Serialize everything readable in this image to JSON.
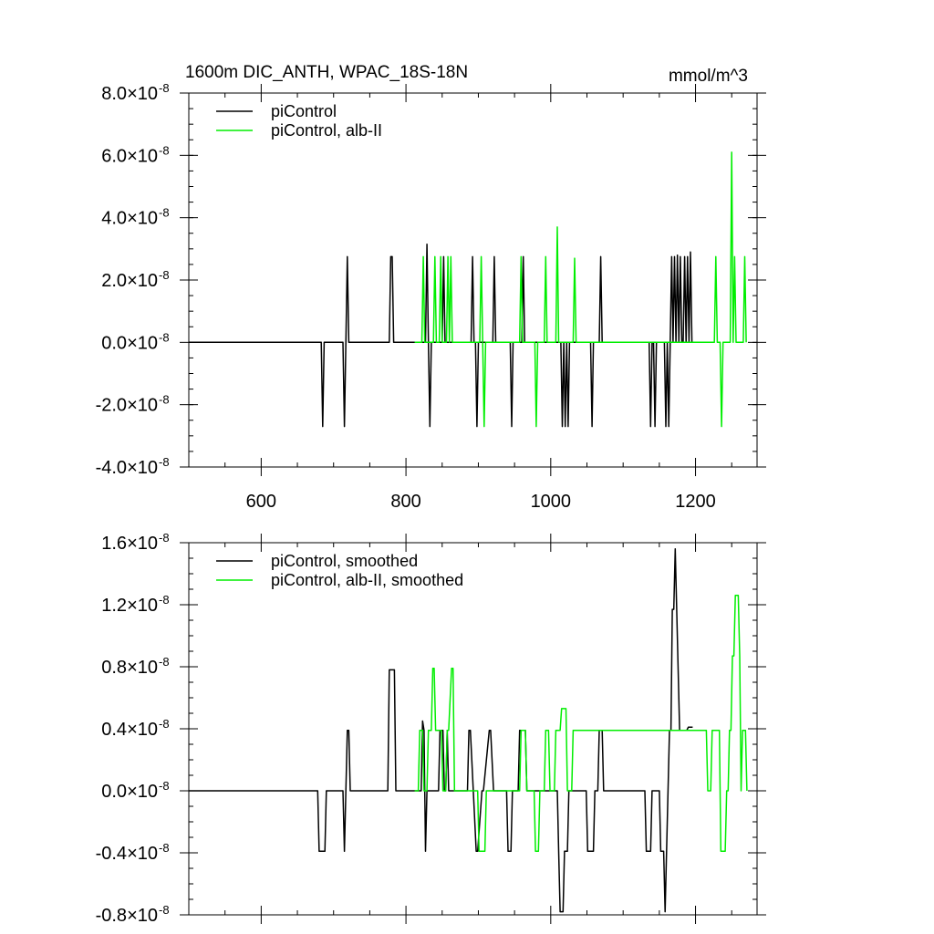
{
  "chart_data": [
    {
      "type": "line",
      "title": "1600m DIC_ANTH, WPAC_18S-18N",
      "units": "mmol/m^3",
      "xlim": [
        500,
        1285
      ],
      "ylim": [
        -4e-08,
        8e-08
      ],
      "x_ticks": [
        600,
        800,
        1000,
        1200
      ],
      "x_tick_labels": [
        "600",
        "800",
        "1000",
        "1200"
      ],
      "y_ticks": [
        -4e-08,
        -2e-08,
        0.0,
        2e-08,
        4e-08,
        6e-08,
        8e-08
      ],
      "y_tick_mantissa": [
        "-4.0",
        "-2.0",
        "0.0",
        "2.0",
        "4.0",
        "6.0",
        "8.0"
      ],
      "y_tick_times": "×",
      "y_tick_base": "10",
      "y_tick_exp": "-8",
      "legend_position": "top-left",
      "series": [
        {
          "name": "piControl",
          "color": "#000000",
          "x": [
            500,
            683,
            685,
            687,
            713,
            715,
            717,
            719,
            721,
            777,
            779,
            781,
            783,
            812,
            827,
            829,
            831,
            833,
            835,
            850,
            852,
            854,
            890,
            892,
            894,
            896,
            898,
            900,
            902,
            920,
            922,
            924,
            944,
            946,
            948,
            960,
            962,
            964,
            1014,
            1016,
            1018,
            1020,
            1022,
            1024,
            1026,
            1055,
            1057,
            1059,
            1067,
            1069,
            1071,
            1136,
            1138,
            1140,
            1142,
            1144,
            1146,
            1157,
            1159,
            1161,
            1163,
            1165,
            1167,
            1169,
            1171,
            1173,
            1175,
            1177,
            1179,
            1181,
            1183,
            1185,
            1187,
            1189,
            1191,
            1193,
            1195,
            1197
          ],
          "values": [
            0,
            0,
            -2.7e-08,
            0,
            0,
            -2.7e-08,
            0,
            2.75e-08,
            0,
            0,
            2.75e-08,
            2.75e-08,
            0,
            0,
            0,
            3.15e-08,
            0,
            -2.7e-08,
            0,
            0,
            2.75e-08,
            0,
            0,
            2.75e-08,
            0,
            0,
            -2.7e-08,
            0,
            0,
            0,
            2.75e-08,
            0,
            0,
            -2.7e-08,
            0,
            0,
            2.75e-08,
            0,
            0,
            -2.7e-08,
            0,
            -2.7e-08,
            0,
            -2.7e-08,
            0,
            0,
            -2.7e-08,
            0,
            0,
            2.75e-08,
            0,
            0,
            -2.7e-08,
            0,
            0,
            -2.7e-08,
            0,
            0,
            -2.7e-08,
            0,
            -2.7e-08,
            0,
            2.75e-08,
            0,
            2.75e-08,
            0,
            2.8e-08,
            0,
            2.75e-08,
            0,
            0,
            2.75e-08,
            0,
            2.75e-08,
            0,
            2.9e-08,
            0,
            0
          ]
        },
        {
          "name": "piControl, alb-II",
          "color": "#00ee00",
          "x": [
            812,
            822,
            824,
            826,
            838,
            840,
            842,
            846,
            848,
            850,
            856,
            858,
            860,
            862,
            864,
            866,
            902,
            904,
            906,
            908,
            910,
            957,
            959,
            961,
            978,
            980,
            982,
            991,
            993,
            995,
            1007,
            1009,
            1011,
            1031,
            1033,
            1035,
            1226,
            1228,
            1230,
            1234,
            1236,
            1238,
            1248,
            1250,
            1252,
            1254,
            1256,
            1258,
            1266,
            1268,
            1270
          ],
          "values": [
            0,
            0,
            2.75e-08,
            0,
            0,
            2.75e-08,
            0,
            0,
            2.75e-08,
            0,
            0,
            2.75e-08,
            0,
            2.75e-08,
            0,
            0,
            0,
            2.75e-08,
            0,
            -2.7e-08,
            0,
            0,
            2.75e-08,
            0,
            0,
            -2.7e-08,
            0,
            0,
            2.75e-08,
            0,
            0,
            3.7e-08,
            0,
            0,
            2.7e-08,
            0,
            0,
            2.75e-08,
            0,
            0,
            -2.7e-08,
            0,
            0,
            6.1e-08,
            0,
            2.75e-08,
            0,
            0,
            0,
            2.75e-08,
            0
          ]
        }
      ]
    },
    {
      "type": "line",
      "title": "",
      "units": "",
      "xlim": [
        500,
        1285
      ],
      "ylim": [
        -8e-09,
        1.6e-08
      ],
      "x_ticks": [
        600,
        800,
        1000,
        1200
      ],
      "x_tick_labels": [],
      "y_ticks": [
        -8e-09,
        -4e-09,
        0.0,
        4e-09,
        8e-09,
        1.2e-08,
        1.6e-08
      ],
      "y_tick_mantissa": [
        "-0.8",
        "-0.4",
        "0.0",
        "0.4",
        "0.8",
        "1.2",
        "1.6"
      ],
      "y_tick_times": "×",
      "y_tick_base": "10",
      "y_tick_exp": "-8",
      "legend_position": "top-left",
      "series": [
        {
          "name": "piControl, smoothed",
          "color": "#000000",
          "x": [
            500,
            678,
            680,
            688,
            690,
            713,
            715,
            717,
            719,
            721,
            723,
            725,
            775,
            777,
            784,
            786,
            819,
            821,
            823,
            825,
            827,
            829,
            831,
            833,
            845,
            847,
            849,
            851,
            853,
            855,
            857,
            859,
            885,
            887,
            889,
            897,
            899,
            905,
            907,
            915,
            917,
            921,
            923,
            939,
            941,
            945,
            947,
            955,
            957,
            965,
            967,
            1009,
            1011,
            1013,
            1015,
            1017,
            1019,
            1021,
            1023,
            1025,
            1027,
            1029,
            1031,
            1049,
            1051,
            1059,
            1061,
            1065,
            1067,
            1071,
            1073,
            1130,
            1132,
            1138,
            1140,
            1150,
            1152,
            1156,
            1158,
            1160,
            1162,
            1164,
            1166,
            1168,
            1170,
            1172,
            1174,
            1176,
            1178,
            1180,
            1182,
            1184,
            1186,
            1188,
            1190,
            1192,
            1194,
            1196
          ],
          "values": [
            0,
            0,
            -3.9e-09,
            -3.9e-09,
            0,
            0,
            -3.9e-09,
            0,
            3.9e-09,
            3.9e-09,
            0,
            0,
            0,
            7.8e-09,
            7.8e-09,
            0,
            0,
            0,
            4.5e-09,
            3.9e-09,
            -3.9e-09,
            0,
            0,
            0,
            0,
            3.9e-09,
            3.9e-09,
            3.9e-09,
            0,
            0,
            3.9e-09,
            0,
            0,
            3.9e-09,
            3.9e-09,
            -3.9e-09,
            -3.9e-09,
            0,
            0,
            3.9e-09,
            3.9e-09,
            0,
            0,
            0,
            -3.9e-09,
            -3.9e-09,
            0,
            0,
            3.9e-09,
            3.9e-09,
            0,
            0,
            -3.9e-09,
            -7.8e-09,
            -7.8e-09,
            -7.8e-09,
            -3.9e-09,
            -3.9e-09,
            -3.9e-09,
            0,
            0,
            0,
            0,
            0,
            -3.9e-09,
            -3.9e-09,
            0,
            0,
            3.9e-09,
            3.9e-09,
            0,
            0,
            -3.9e-09,
            -3.9e-09,
            0,
            0,
            -3.9e-09,
            -3.9e-09,
            -7.8e-09,
            -3.9e-09,
            0,
            3.9e-09,
            3.9e-09,
            1.17e-08,
            1.17e-08,
            1.56e-08,
            1.17e-08,
            7.8e-09,
            3.9e-09,
            3.9e-09,
            3.9e-09,
            3.9e-09,
            3.9e-09,
            3.9e-09,
            4.1e-09,
            4.1e-09,
            4.1e-09,
            4.1e-09
          ]
        },
        {
          "name": "piControl, alb-II, smoothed",
          "color": "#00ee00",
          "x": [
            812,
            817,
            819,
            823,
            825,
            829,
            831,
            835,
            837,
            839,
            841,
            843,
            845,
            849,
            851,
            855,
            857,
            859,
            863,
            865,
            867,
            869,
            871,
            899,
            901,
            909,
            911,
            937,
            939,
            957,
            959,
            965,
            967,
            977,
            979,
            983,
            985,
            991,
            993,
            997,
            999,
            1005,
            1007,
            1013,
            1015,
            1021,
            1023,
            1029,
            1031,
            1215,
            1217,
            1221,
            1223,
            1233,
            1235,
            1241,
            1243,
            1245,
            1247,
            1249,
            1251,
            1253,
            1255,
            1259,
            1261,
            1263,
            1265,
            1269,
            1271
          ],
          "values": [
            0,
            0,
            3.9e-09,
            3.9e-09,
            0,
            0,
            3.9e-09,
            3.9e-09,
            7.9e-09,
            7.9e-09,
            3.9e-09,
            3.9e-09,
            3.9e-09,
            3.9e-09,
            0,
            0,
            3.9e-09,
            3.9e-09,
            7.9e-09,
            7.9e-09,
            0,
            0,
            0,
            0,
            -3.9e-09,
            -3.9e-09,
            0,
            0,
            0,
            0,
            3.9e-09,
            3.9e-09,
            0,
            0,
            -3.9e-09,
            -3.9e-09,
            0,
            0,
            3.9e-09,
            3.9e-09,
            0,
            0,
            3.9e-09,
            3.9e-09,
            5.3e-09,
            5.3e-09,
            0,
            0,
            3.9e-09,
            3.9e-09,
            0,
            0,
            3.9e-09,
            3.9e-09,
            -3.9e-09,
            -3.9e-09,
            0,
            0,
            3.9e-09,
            3.9e-09,
            8.7e-09,
            8.7e-09,
            1.26e-08,
            1.26e-08,
            8.7e-09,
            0,
            3.9e-09,
            3.9e-09,
            0
          ]
        }
      ]
    }
  ]
}
